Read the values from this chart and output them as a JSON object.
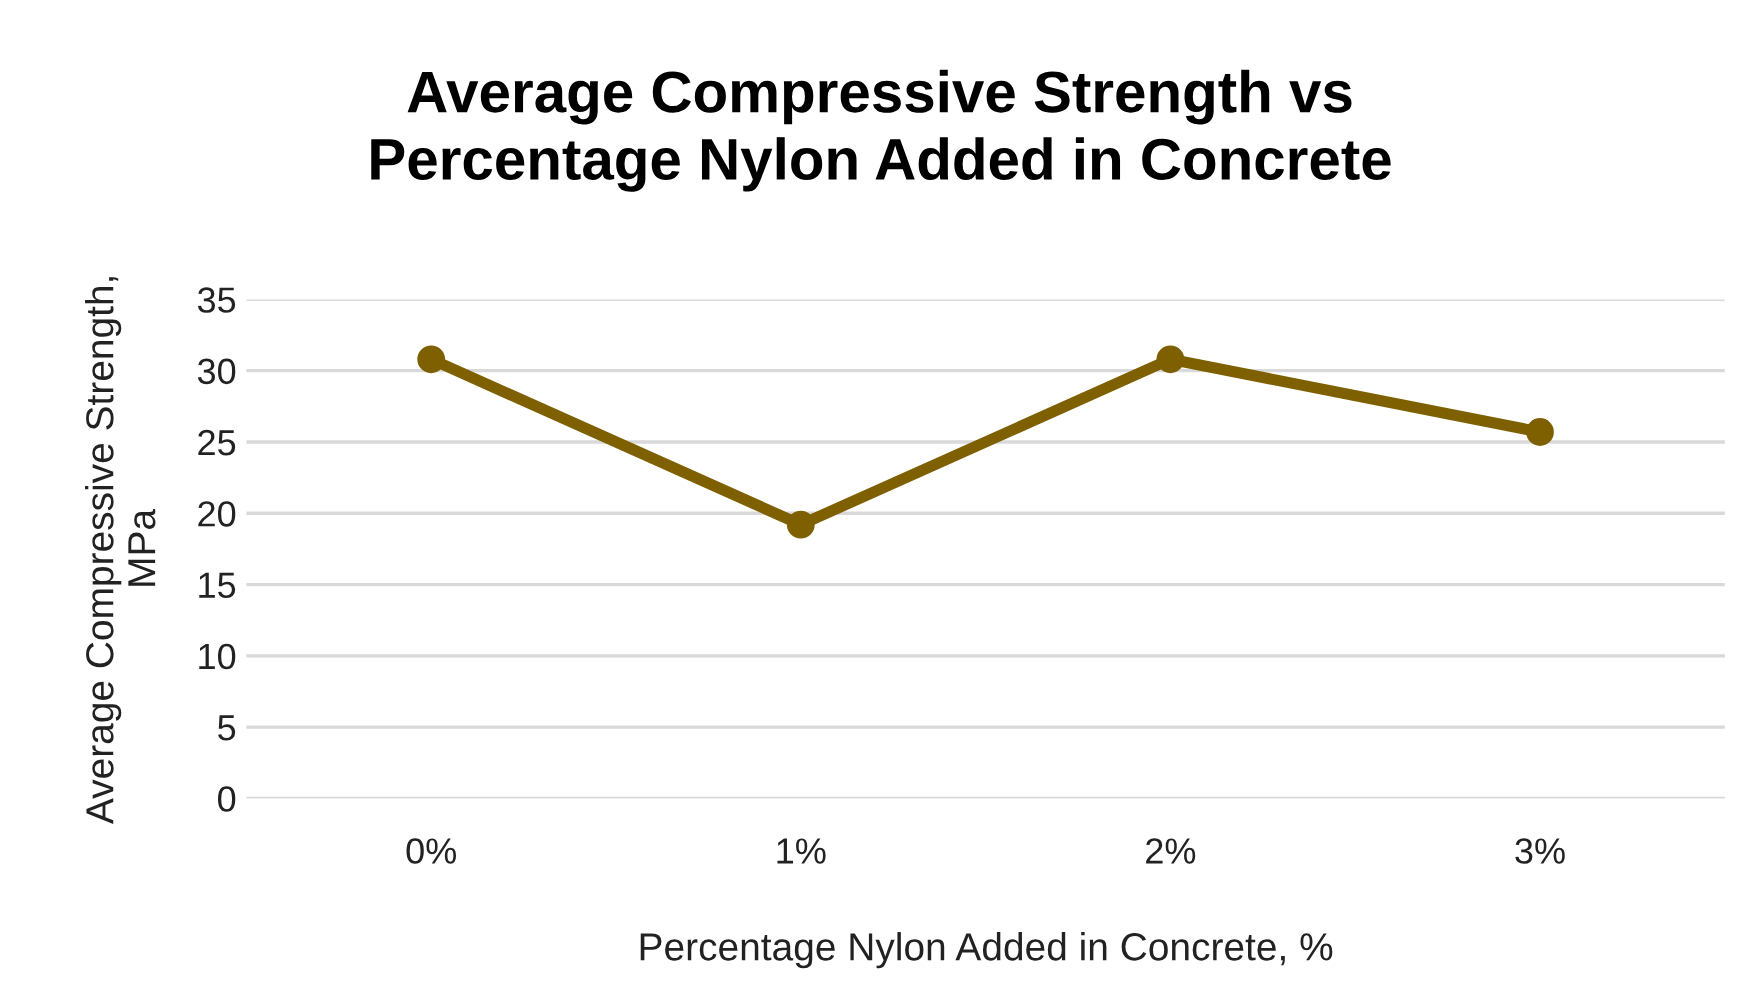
{
  "chart_data": {
    "type": "line",
    "title": "Average Compressive Strength vs\nPercentage Nylon Added in Concrete",
    "xlabel": "Percentage Nylon Added in Concrete, %",
    "ylabel": "Average Compressive Strength,\nMPa",
    "categories": [
      "0%",
      "1%",
      "2%",
      "3%"
    ],
    "series": [
      {
        "color": "#7f6000",
        "values": [
          30.8,
          19.2,
          30.8,
          25.7
        ]
      }
    ],
    "ylim": [
      0,
      35
    ],
    "yticks": [
      0,
      5,
      10,
      15,
      20,
      25,
      30,
      35
    ],
    "grid": "y",
    "marker": "circle",
    "line_style": "solid"
  }
}
